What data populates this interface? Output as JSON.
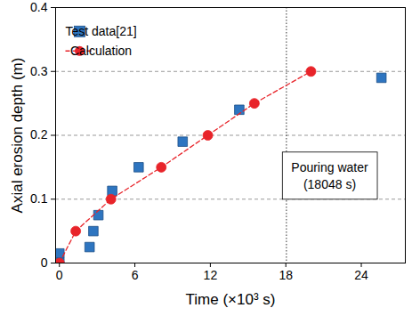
{
  "chart_data": {
    "type": "line",
    "x_label": "Time (×10³ s)",
    "y_label": "Axial erosion depth (m)",
    "xlim": [
      -0.3,
      27.5
    ],
    "xticks": [
      0,
      6,
      12,
      18,
      24
    ],
    "ylim": [
      0,
      0.4
    ],
    "yticks": [
      0,
      0.1,
      0.2,
      0.3,
      0.4
    ],
    "grid": true,
    "legend": "upper left",
    "series": [
      {
        "name": "Test data[21]",
        "type": "scatter",
        "marker": "square",
        "color": "#2e75c0",
        "x": [
          0,
          0,
          2.4,
          2.7,
          3.1,
          4.2,
          6.3,
          9.8,
          14.3,
          25.6
        ],
        "values": [
          0.015,
          0.0,
          0.025,
          0.05,
          0.075,
          0.113,
          0.15,
          0.19,
          0.24,
          0.29
        ]
      },
      {
        "name": "Calculation",
        "type": "line",
        "marker": "circle",
        "line_style": "dashed",
        "color": "#e8242a",
        "x": [
          0,
          1.3,
          4.1,
          8.1,
          11.8,
          15.5,
          20
        ],
        "values": [
          0,
          0.05,
          0.1,
          0.15,
          0.2,
          0.25,
          0.3
        ]
      }
    ],
    "annotation": {
      "x": 18.048,
      "text": [
        "Pouring water",
        "(18048 s)"
      ]
    }
  }
}
